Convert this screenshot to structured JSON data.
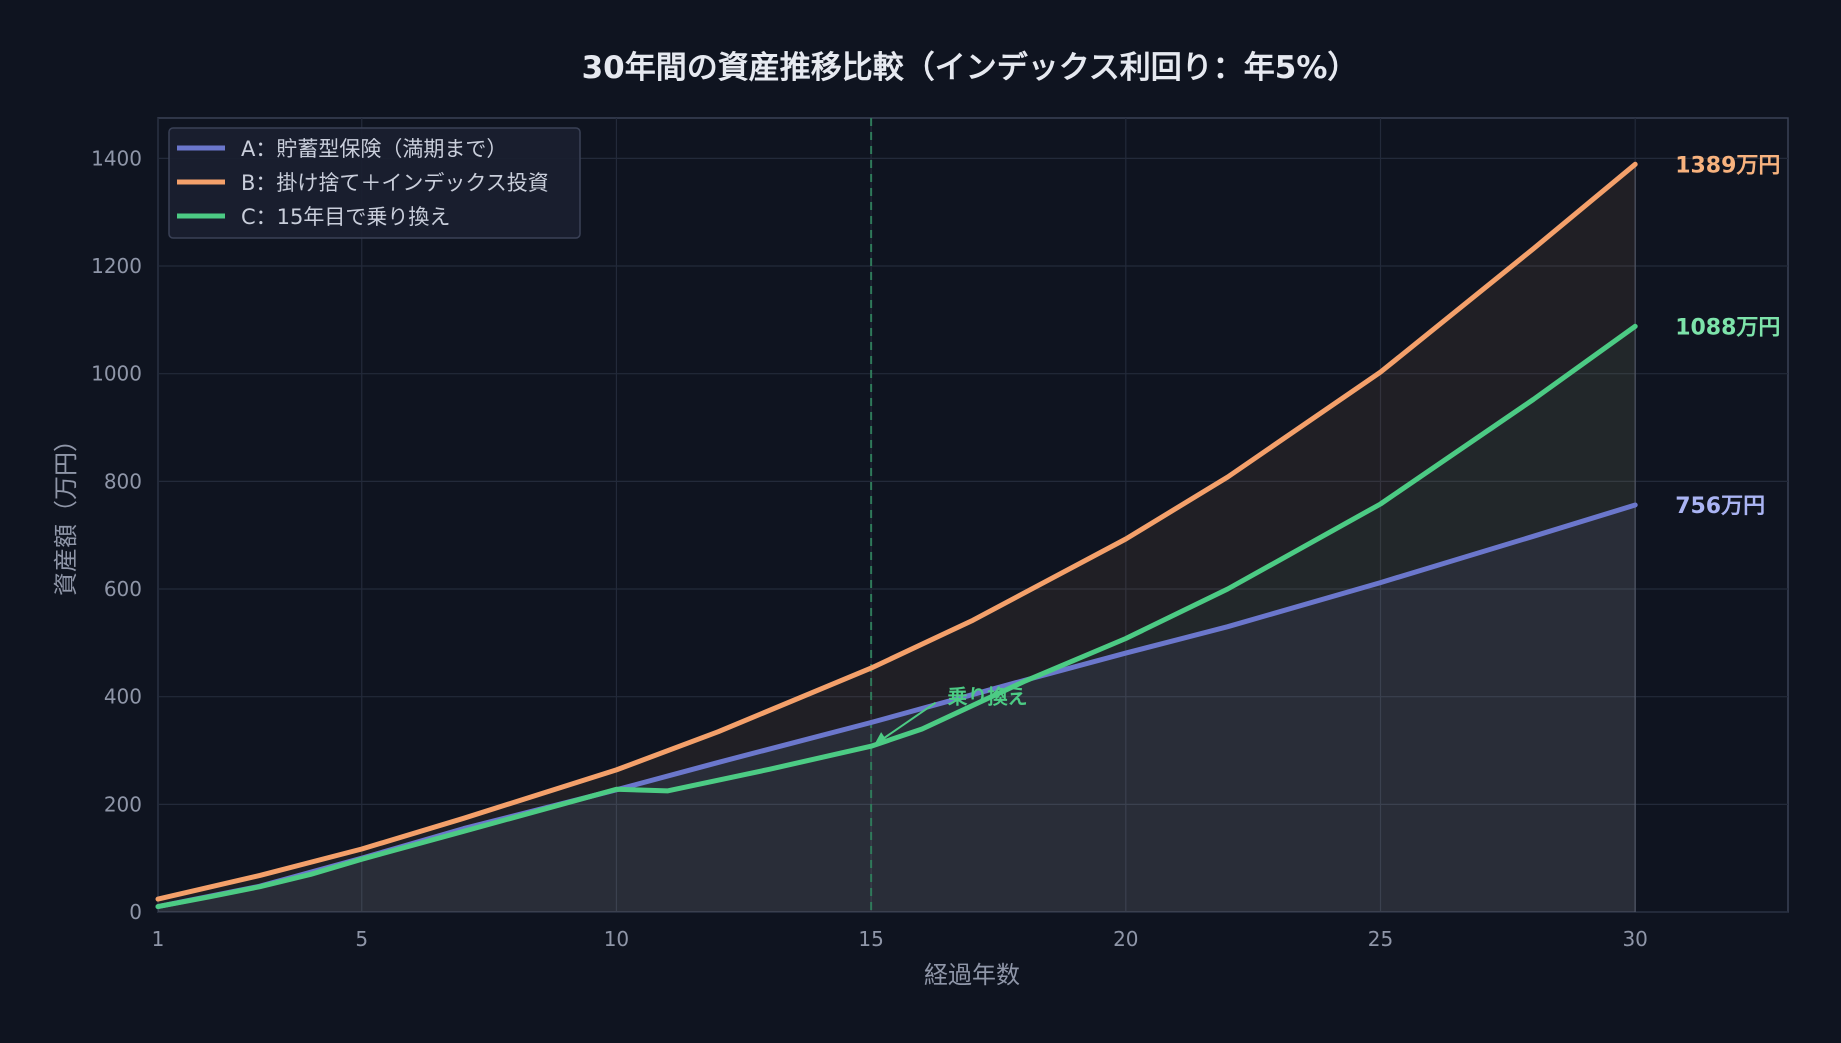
{
  "chart_data": {
    "type": "line",
    "title": "30年間の資産推移比較（インデックス利回り：年5%）",
    "xlabel": "経過年数",
    "ylabel": "資産額（万円）",
    "xlim": [
      1,
      33
    ],
    "ylim": [
      0,
      1475
    ],
    "xticks": [
      1,
      5,
      10,
      15,
      20,
      25,
      30
    ],
    "yticks": [
      0,
      200,
      400,
      600,
      800,
      1000,
      1200,
      1400
    ],
    "grid": true,
    "legend_position": "top-left",
    "switch_year": 15,
    "annotation": {
      "text": "乗り換え",
      "x": 16.5,
      "y": 400,
      "arrow_to": [
        15,
        310
      ]
    },
    "series": [
      {
        "name": "A：貯蓄型保険（満期まで）",
        "color": "#6b77cc",
        "end_label": "756万円",
        "points": [
          [
            1,
            10
          ],
          [
            3,
            48
          ],
          [
            5,
            100
          ],
          [
            7,
            155
          ],
          [
            10,
            227
          ],
          [
            12,
            278
          ],
          [
            15,
            352
          ],
          [
            18,
            430
          ],
          [
            20,
            481
          ],
          [
            22,
            530
          ],
          [
            25,
            612
          ],
          [
            28,
            698
          ],
          [
            30,
            756
          ]
        ]
      },
      {
        "name": "B：掛け捨て＋インデックス投資",
        "color": "#f4a06a",
        "end_label": "1389万円",
        "points": [
          [
            1,
            24
          ],
          [
            3,
            68
          ],
          [
            5,
            117
          ],
          [
            7,
            174
          ],
          [
            10,
            264
          ],
          [
            12,
            335
          ],
          [
            15,
            453
          ],
          [
            17,
            542
          ],
          [
            20,
            693
          ],
          [
            22,
            808
          ],
          [
            25,
            1003
          ],
          [
            28,
            1232
          ],
          [
            30,
            1389
          ]
        ]
      },
      {
        "name": "C：15年目で乗り換え",
        "color": "#4ccb84",
        "end_label": "1088万円",
        "points": [
          [
            1,
            10
          ],
          [
            2,
            28
          ],
          [
            3,
            47
          ],
          [
            4,
            70
          ],
          [
            5,
            98
          ],
          [
            7,
            150
          ],
          [
            10,
            228
          ],
          [
            11,
            225
          ],
          [
            13,
            265
          ],
          [
            15,
            308
          ],
          [
            16,
            340
          ],
          [
            18,
            428
          ],
          [
            20,
            508
          ],
          [
            22,
            600
          ],
          [
            25,
            758
          ],
          [
            28,
            952
          ],
          [
            30,
            1088
          ]
        ]
      }
    ]
  },
  "colors": {
    "background": "#0f1420",
    "plot_background": "#0f1420",
    "grid": "#232a3a",
    "frame": "#3a4156",
    "switch_line": "#2f7a5a",
    "end_label_a": "#aab4f3",
    "end_label_b": "#f7b27e",
    "end_label_c": "#7de3aa"
  }
}
